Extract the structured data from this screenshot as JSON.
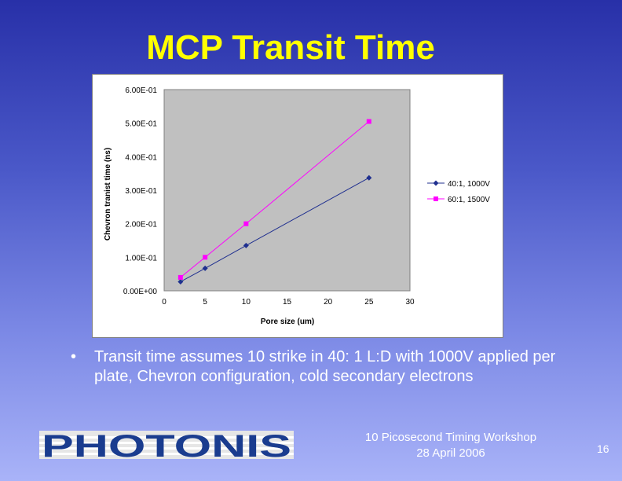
{
  "slide": {
    "title": "MCP Transit Time",
    "bullet": "Transit time assumes 10 strike in 40: 1 L:D with 1000V applied per plate, Chevron configuration, cold secondary electrons",
    "bullet_symbol": "•",
    "logo_text": "PHOTONIS",
    "footer_line1": "10 Picosecond Timing Workshop",
    "footer_line2": "28 April 2006",
    "page_number": "16"
  },
  "colors": {
    "title": "#ffff00",
    "series1": "#1f2f8f",
    "series2": "#ff00ff",
    "plot_bg": "#c0c0c0",
    "logo": "#1a3c8f"
  },
  "chart_data": {
    "type": "line",
    "title": "",
    "xlabel": "Pore size (um)",
    "ylabel": "Chevron tranist time (ns)",
    "xlim": [
      0,
      30
    ],
    "ylim": [
      0,
      0.6
    ],
    "x_ticks": [
      "0",
      "5",
      "10",
      "15",
      "20",
      "25",
      "30"
    ],
    "x_tick_values": [
      0,
      5,
      10,
      15,
      20,
      25,
      30
    ],
    "y_ticks": [
      "0.00E+00",
      "1.00E-01",
      "2.00E-01",
      "3.00E-01",
      "4.00E-01",
      "5.00E-01",
      "6.00E-01"
    ],
    "y_tick_values": [
      0,
      0.1,
      0.2,
      0.3,
      0.4,
      0.5,
      0.6
    ],
    "grid": false,
    "legend_position": "right",
    "series": [
      {
        "name": "40:1, 1000V",
        "marker": "diamond",
        "x": [
          2,
          5,
          10,
          25
        ],
        "values": [
          0.027,
          0.067,
          0.135,
          0.337
        ]
      },
      {
        "name": "60:1, 1500V",
        "marker": "square",
        "x": [
          2,
          5,
          10,
          25
        ],
        "values": [
          0.04,
          0.1,
          0.2,
          0.505
        ]
      }
    ]
  }
}
